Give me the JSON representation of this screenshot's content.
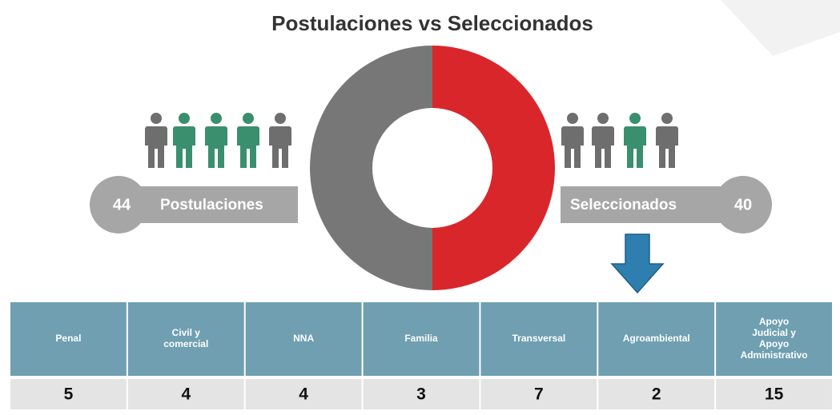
{
  "title": "Postulaciones vs Seleccionados",
  "postulaciones": {
    "value": "44",
    "label": "Postulaciones"
  },
  "seleccionados": {
    "value": "40",
    "label": "Seleccionados"
  },
  "table": {
    "headers": [
      "Penal",
      "Civil y comercial",
      "NNA",
      "Familia",
      "Transversal",
      "Agroambiental",
      "Apoyo Judicial y Apoyo Administrativo"
    ],
    "values": [
      "5",
      "4",
      "4",
      "3",
      "7",
      "2",
      "15"
    ]
  }
}
